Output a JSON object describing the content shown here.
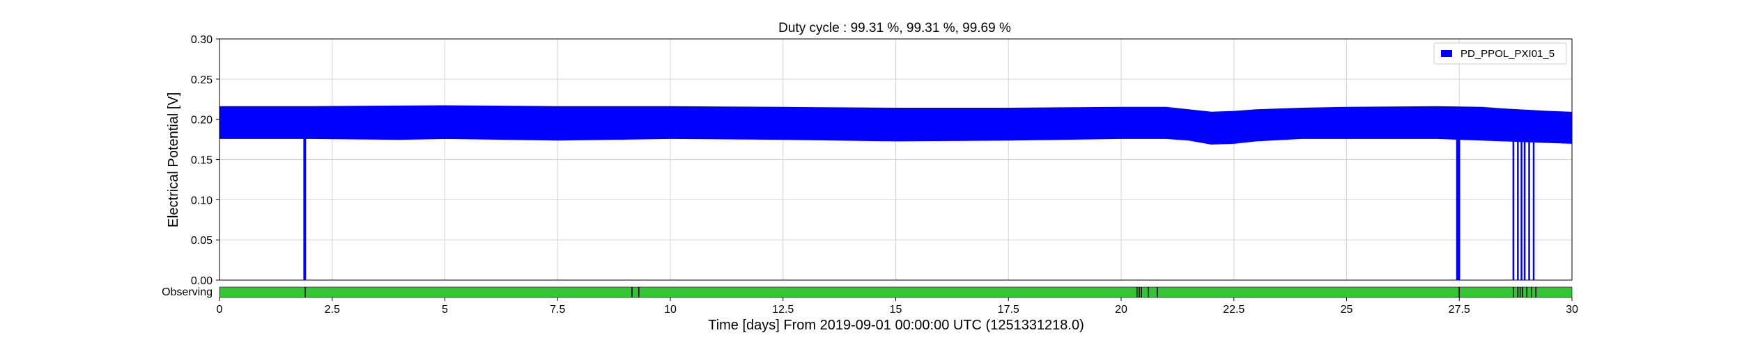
{
  "chart_data": {
    "type": "area",
    "title": "Duty cycle : 99.31 %, 99.31 %, 99.69 %",
    "xlabel": "Time [days] From 2019-09-01 00:00:00 UTC (1251331218.0)",
    "ylabel": "Electrical Potential [V]",
    "xlim": [
      0,
      30
    ],
    "ylim": [
      0,
      0.3
    ],
    "x_ticks": [
      "0",
      "2.5",
      "5",
      "7.5",
      "10",
      "12.5",
      "15",
      "17.5",
      "20",
      "22.5",
      "25",
      "27.5",
      "30"
    ],
    "y_ticks": [
      "0.00",
      "0.05",
      "0.10",
      "0.15",
      "0.20",
      "0.25",
      "0.30"
    ],
    "grid": true,
    "legend_position": "top-right",
    "colors": {
      "series": "#0000ff",
      "observing": "#33c633",
      "gap": "#000000",
      "grid": "#d3d3d3"
    },
    "series": [
      {
        "name": "PD_PPOL_PXI01_5",
        "upper": [
          [
            0,
            0.216
          ],
          [
            2,
            0.216
          ],
          [
            5,
            0.217
          ],
          [
            7.5,
            0.216
          ],
          [
            10,
            0.216
          ],
          [
            12.5,
            0.215
          ],
          [
            15,
            0.214
          ],
          [
            17.5,
            0.214
          ],
          [
            20,
            0.215
          ],
          [
            21,
            0.215
          ],
          [
            22,
            0.209
          ],
          [
            22.5,
            0.21
          ],
          [
            23,
            0.212
          ],
          [
            24,
            0.214
          ],
          [
            25,
            0.215
          ],
          [
            27,
            0.216
          ],
          [
            28,
            0.215
          ],
          [
            28.5,
            0.213
          ],
          [
            29.5,
            0.21
          ],
          [
            30,
            0.209
          ]
        ],
        "lower": [
          [
            0,
            0.176
          ],
          [
            2,
            0.176
          ],
          [
            4,
            0.175
          ],
          [
            5,
            0.176
          ],
          [
            7.5,
            0.174
          ],
          [
            10,
            0.176
          ],
          [
            12.5,
            0.175
          ],
          [
            15,
            0.173
          ],
          [
            17.5,
            0.174
          ],
          [
            20,
            0.176
          ],
          [
            21,
            0.176
          ],
          [
            21.5,
            0.174
          ],
          [
            22,
            0.169
          ],
          [
            22.5,
            0.17
          ],
          [
            23,
            0.173
          ],
          [
            24,
            0.176
          ],
          [
            25,
            0.176
          ],
          [
            27,
            0.176
          ],
          [
            28,
            0.174
          ],
          [
            29,
            0.172
          ],
          [
            30,
            0.17
          ]
        ],
        "dropouts": [
          [
            1.88,
            0
          ],
          [
            1.9,
            0
          ],
          [
            27.45,
            0
          ],
          [
            27.48,
            0
          ],
          [
            27.5,
            0
          ],
          [
            28.7,
            0
          ],
          [
            28.8,
            0
          ],
          [
            28.88,
            0
          ],
          [
            28.95,
            0
          ],
          [
            29.05,
            0
          ],
          [
            29.15,
            0
          ]
        ]
      }
    ],
    "segments": {
      "label": "Observing",
      "gaps": [
        1.9,
        9.15,
        9.3,
        20.35,
        20.4,
        20.45,
        20.6,
        20.8,
        27.5,
        28.7,
        28.8,
        28.85,
        28.9,
        29.0,
        29.1,
        29.2
      ]
    }
  }
}
